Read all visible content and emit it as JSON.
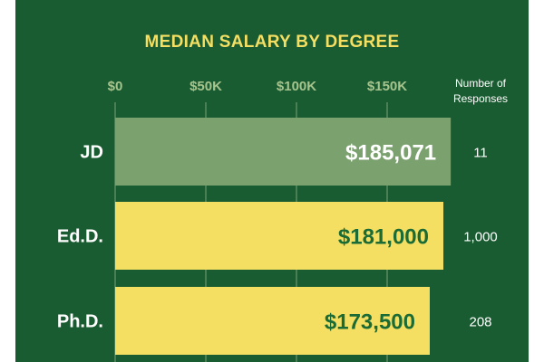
{
  "chart_data": {
    "type": "bar",
    "orientation": "horizontal",
    "title": "MEDIAN SALARY BY DEGREE",
    "categories": [
      "JD",
      "Ed.D.",
      "Ph.D."
    ],
    "values": [
      185071,
      181000,
      173500
    ],
    "value_labels": [
      "$185,071",
      "$181,000",
      "$173,500"
    ],
    "xlim": [
      0,
      200000
    ],
    "x_ticks": [
      0,
      50000,
      100000,
      150000
    ],
    "x_tick_labels": [
      "$0",
      "$50K",
      "$100K",
      "$150K"
    ],
    "grid": true,
    "responses_header": [
      "Number of",
      "Responses"
    ],
    "responses": [
      "11",
      "1,000",
      "208"
    ],
    "colors": {
      "background": "#1a5c31",
      "title": "#f4df63",
      "tick_labels": "#a7c48e",
      "gridlines": "#5a8a5f",
      "bars": [
        "#7ba16f",
        "#f4df63",
        "#f4df63"
      ],
      "value_text": [
        "#ffffff",
        "#1a6b35",
        "#1a6b35"
      ]
    }
  }
}
